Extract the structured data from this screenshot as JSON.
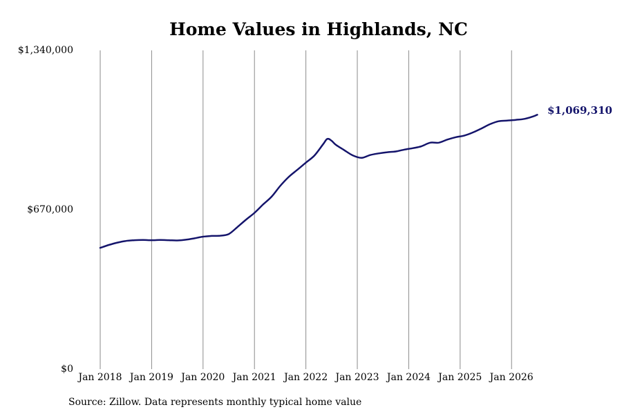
{
  "chart_data": {
    "type": "line",
    "title": "Home Values in Highlands, NC",
    "xlabel": "",
    "ylabel": "",
    "x_tick_labels": [
      "Jan 2018",
      "Jan 2019",
      "Jan 2020",
      "Jan 2021",
      "Jan 2022",
      "Jan 2023",
      "Jan 2024",
      "Jan 2025",
      "Jan 2026"
    ],
    "y_tick_labels": [
      "$0",
      "$670,000",
      "$1,340,000"
    ],
    "y_ticks": [
      0,
      670000,
      1340000
    ],
    "ylim": [
      0,
      1340000
    ],
    "xlim": [
      "2018-01",
      "2026-08"
    ],
    "grid": "vertical",
    "line_color": "#14146b",
    "end_label": "$1,069,310",
    "series": [
      {
        "x": [
          "2018-01",
          "2018-03",
          "2018-05",
          "2018-07",
          "2018-09",
          "2018-11",
          "2019-01",
          "2019-03",
          "2019-05",
          "2019-07",
          "2019-09",
          "2019-11",
          "2020-01",
          "2020-03",
          "2020-05",
          "2020-07",
          "2020-09",
          "2020-11",
          "2021-01",
          "2021-03",
          "2021-05",
          "2021-07",
          "2021-09",
          "2021-11",
          "2022-01",
          "2022-03",
          "2022-05",
          "2022-06",
          "2022-07",
          "2022-08",
          "2022-10",
          "2022-12",
          "2023-02",
          "2023-04",
          "2023-06",
          "2023-08",
          "2023-10",
          "2023-12",
          "2024-02",
          "2024-04",
          "2024-06",
          "2024-08",
          "2024-10",
          "2024-12",
          "2025-02",
          "2025-04",
          "2025-06",
          "2025-08",
          "2025-10",
          "2025-12",
          "2026-02",
          "2026-04",
          "2026-06",
          "2026-07"
        ],
        "y": [
          510000,
          522000,
          532000,
          539000,
          542000,
          543000,
          542000,
          543000,
          542000,
          541000,
          544000,
          550000,
          557000,
          560000,
          561000,
          568000,
          597000,
          628000,
          657000,
          692000,
          725000,
          770000,
          808000,
          838000,
          868000,
          898000,
          945000,
          968000,
          960000,
          943000,
          920000,
          898000,
          888000,
          900000,
          907000,
          912000,
          915000,
          923000,
          929000,
          937000,
          952000,
          952000,
          965000,
          975000,
          982000,
          995000,
          1012000,
          1030000,
          1042000,
          1045000,
          1048000,
          1052000,
          1062000,
          1069310
        ]
      }
    ]
  },
  "source": "Source: Zillow. Data represents monthly typical home value"
}
